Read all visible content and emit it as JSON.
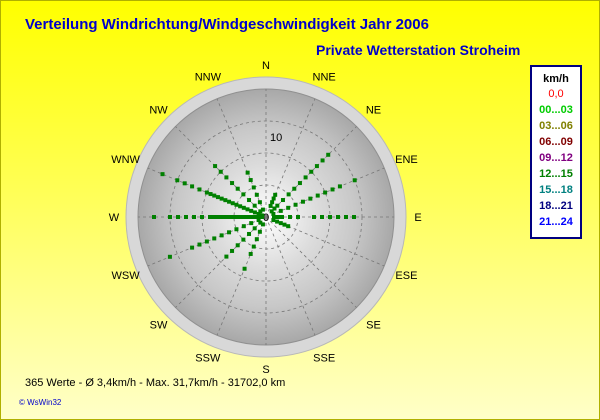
{
  "title": "Verteilung Windrichtung/Windgeschwindigkeit  Jahr 2006",
  "subtitle": "Private Wetterstation Stroheim",
  "footer": "365 Werte   -   Ø 3,4km/h  -  Max. 31,7km/h   -   31702,0 km",
  "logo": "© WsWin32",
  "legend": {
    "header": "km/h",
    "calm": {
      "label": "0,0",
      "color": "#ff0000"
    },
    "bins": [
      {
        "label": "00...03",
        "color": "#00cc00"
      },
      {
        "label": "03...06",
        "color": "#808000"
      },
      {
        "label": "06...09",
        "color": "#800000"
      },
      {
        "label": "09...12",
        "color": "#800080"
      },
      {
        "label": "12...15",
        "color": "#008000"
      },
      {
        "label": "15...18",
        "color": "#008080"
      },
      {
        "label": "18...21",
        "color": "#000080"
      },
      {
        "label": "21...24",
        "color": "#0000ff"
      }
    ]
  },
  "chart_data": {
    "type": "scatter",
    "coordinate_system": "polar",
    "directions": [
      "N",
      "NNE",
      "NE",
      "ENE",
      "E",
      "ESE",
      "SE",
      "SSE",
      "S",
      "SSW",
      "SW",
      "WSW",
      "W",
      "WNW",
      "NW",
      "NNW"
    ],
    "radial_tick_labels": [
      "0",
      "10"
    ],
    "radial_range": [
      0,
      16
    ],
    "center_label": "0",
    "point_color": "#008000",
    "series": [
      {
        "direction": "NNE",
        "r": [
          1.5,
          2.0,
          2.5,
          3.0
        ]
      },
      {
        "direction": "NE",
        "r": [
          1.0,
          1.5,
          2.0,
          3.0,
          4.0,
          5.0,
          6.0,
          7.0,
          8.0,
          9.0,
          10.0,
          11.0
        ]
      },
      {
        "direction": "ENE",
        "r": [
          1.0,
          2.0,
          3.0,
          4.0,
          5.0,
          6.0,
          7.0,
          8.0,
          9.0,
          10.0,
          12.0
        ]
      },
      {
        "direction": "E",
        "r": [
          1.0,
          1.5,
          2.0,
          3.0,
          4.0,
          6.0,
          7.0,
          8.0,
          9.0,
          10.0,
          11.0
        ]
      },
      {
        "direction": "ESE",
        "r": [
          1.0,
          1.5,
          2.0,
          2.5,
          3.0
        ]
      },
      {
        "direction": "SSW",
        "r": [
          1.0,
          2.0,
          3.0,
          4.0,
          5.0,
          7.0
        ]
      },
      {
        "direction": "SW",
        "r": [
          1.0,
          2.0,
          3.0,
          4.0,
          5.0,
          6.0,
          7.0
        ]
      },
      {
        "direction": "WSW",
        "r": [
          1.0,
          2.0,
          3.0,
          4.0,
          5.0,
          6.0,
          7.0,
          8.0,
          9.0,
          10.0,
          13.0
        ]
      },
      {
        "direction": "W",
        "r": [
          0.5,
          1.0,
          1.5,
          2.0,
          2.5,
          3.0,
          3.5,
          4.0,
          4.5,
          5.0,
          5.5,
          6.0,
          6.5,
          7.0,
          8.0,
          9.0,
          10.0,
          11.0,
          12.0,
          14.0
        ]
      },
      {
        "direction": "WNW",
        "r": [
          0.5,
          1.0,
          1.5,
          2.0,
          2.5,
          3.0,
          3.5,
          4.0,
          4.5,
          5.0,
          5.5,
          6.0,
          6.5,
          7.0,
          7.5,
          8.0,
          9.0,
          10.0,
          11.0,
          12.0,
          14.0
        ]
      },
      {
        "direction": "NW",
        "r": [
          1.0,
          2.0,
          3.0,
          4.0,
          5.0,
          6.0,
          7.0,
          8.0,
          9.0
        ]
      },
      {
        "direction": "NNW",
        "r": [
          1.0,
          2.0,
          3.0,
          4.0,
          5.0,
          6.0
        ]
      }
    ]
  }
}
